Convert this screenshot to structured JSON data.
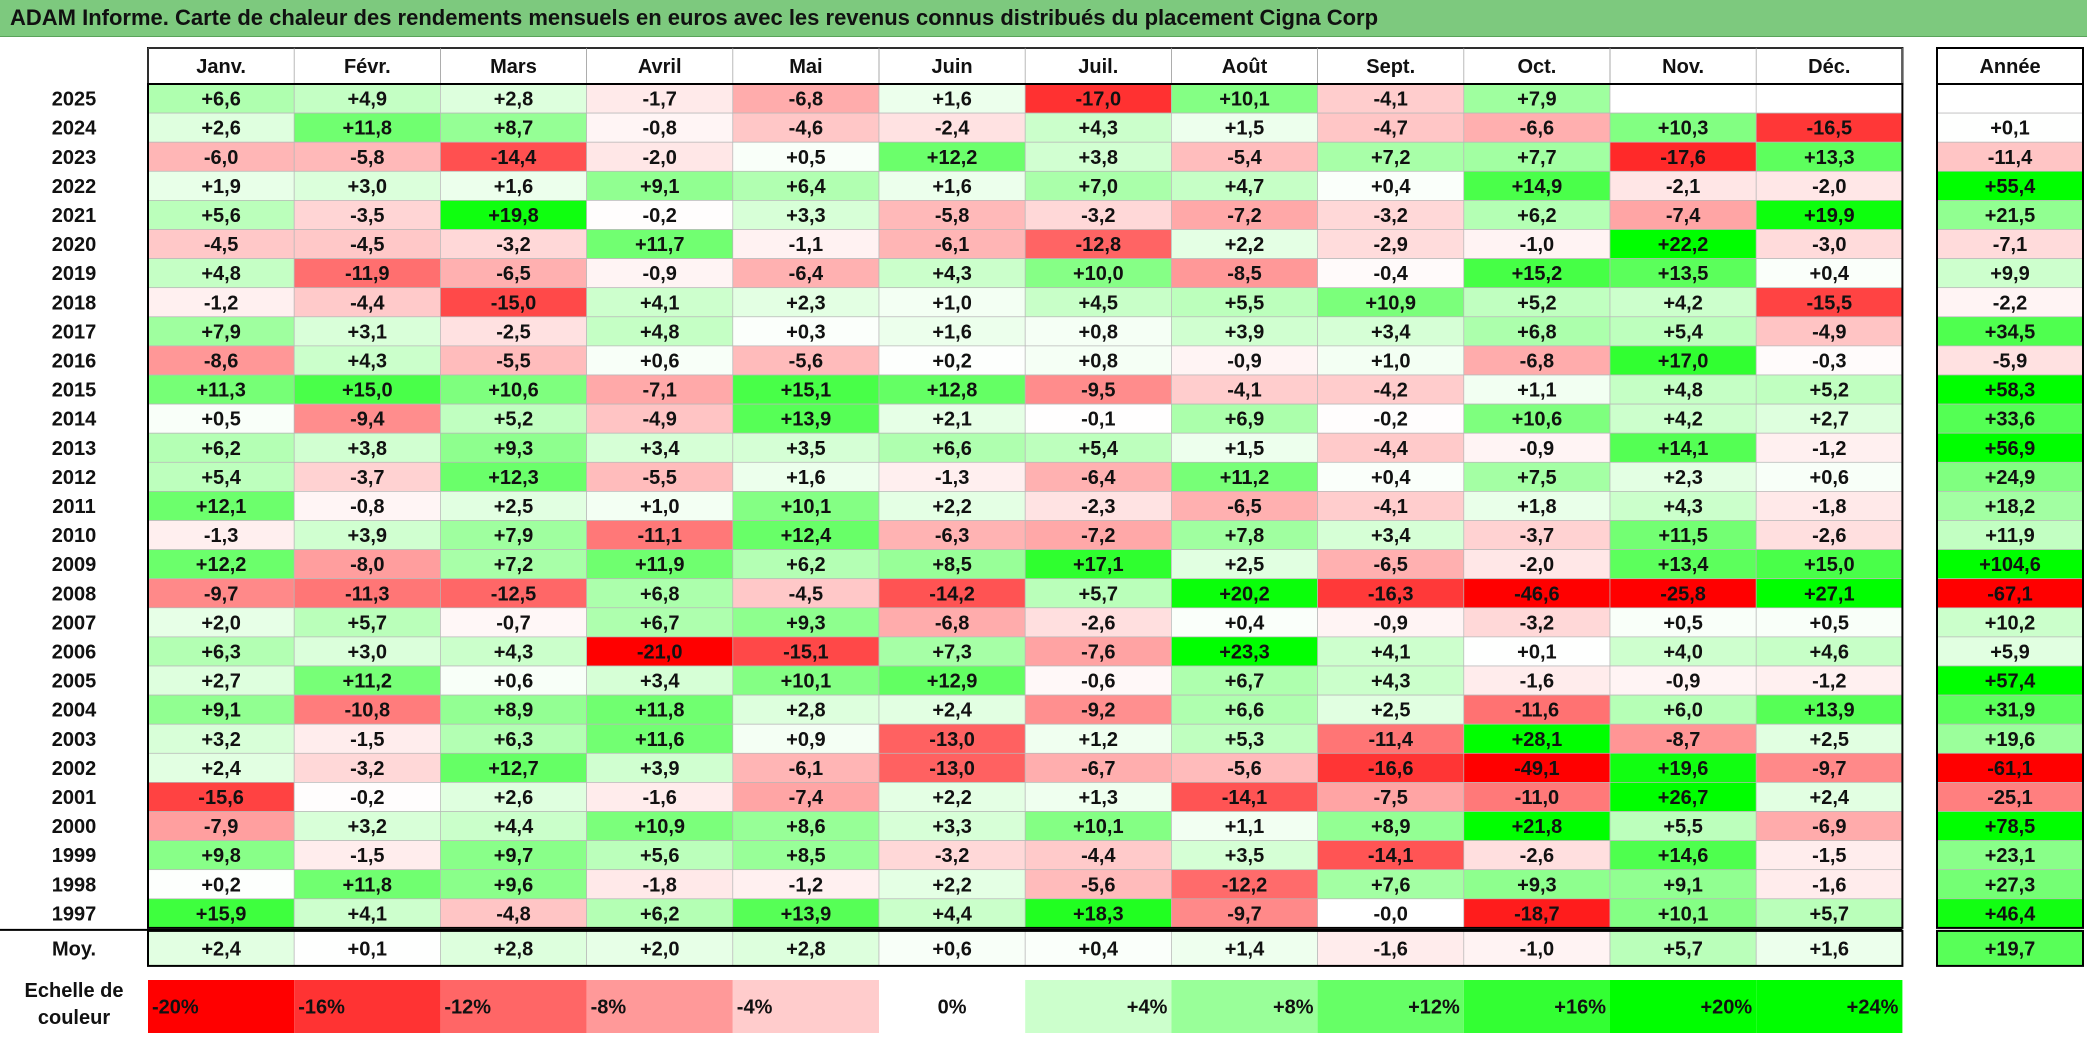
{
  "title": "ADAM Informe. Carte de chaleur des rendements mensuels en euros avec les revenus connus distribués du placement Cigna Corp",
  "colors": {
    "title_bg": "#7dc97e",
    "negative_max": "#ff0000",
    "neutral": "#ffffff",
    "positive_max": "#00ff00"
  },
  "chart_data": {
    "type": "heatmap",
    "columns": [
      "Janv.",
      "Févr.",
      "Mars",
      "Avril",
      "Mai",
      "Juin",
      "Juil.",
      "Août",
      "Sept.",
      "Oct.",
      "Nov.",
      "Déc."
    ],
    "annual_header": "Année",
    "rows": [
      {
        "year": "2025",
        "values": [
          "+6,6",
          "+4,9",
          "+2,8",
          "-1,7",
          "-6,8",
          "+1,6",
          "-17,0",
          "+10,1",
          "-4,1",
          "+7,9",
          "",
          ""
        ],
        "annual": ""
      },
      {
        "year": "2024",
        "values": [
          "+2,6",
          "+11,8",
          "+8,7",
          "-0,8",
          "-4,6",
          "-2,4",
          "+4,3",
          "+1,5",
          "-4,7",
          "-6,6",
          "+10,3",
          "-16,5"
        ],
        "annual": "+0,1"
      },
      {
        "year": "2023",
        "values": [
          "-6,0",
          "-5,8",
          "-14,4",
          "-2,0",
          "+0,5",
          "+12,2",
          "+3,8",
          "-5,4",
          "+7,2",
          "+7,7",
          "-17,6",
          "+13,3"
        ],
        "annual": "-11,4"
      },
      {
        "year": "2022",
        "values": [
          "+1,9",
          "+3,0",
          "+1,6",
          "+9,1",
          "+6,4",
          "+1,6",
          "+7,0",
          "+4,7",
          "+0,4",
          "+14,9",
          "-2,1",
          "-2,0"
        ],
        "annual": "+55,4"
      },
      {
        "year": "2021",
        "values": [
          "+5,6",
          "-3,5",
          "+19,8",
          "-0,2",
          "+3,3",
          "-5,8",
          "-3,2",
          "-7,2",
          "-3,2",
          "+6,2",
          "-7,4",
          "+19,9"
        ],
        "annual": "+21,5"
      },
      {
        "year": "2020",
        "values": [
          "-4,5",
          "-4,5",
          "-3,2",
          "+11,7",
          "-1,1",
          "-6,1",
          "-12,8",
          "+2,2",
          "-2,9",
          "-1,0",
          "+22,2",
          "-3,0"
        ],
        "annual": "-7,1"
      },
      {
        "year": "2019",
        "values": [
          "+4,8",
          "-11,9",
          "-6,5",
          "-0,9",
          "-6,4",
          "+4,3",
          "+10,0",
          "-8,5",
          "-0,4",
          "+15,2",
          "+13,5",
          "+0,4"
        ],
        "annual": "+9,9"
      },
      {
        "year": "2018",
        "values": [
          "-1,2",
          "-4,4",
          "-15,0",
          "+4,1",
          "+2,3",
          "+1,0",
          "+4,5",
          "+5,5",
          "+10,9",
          "+5,2",
          "+4,2",
          "-15,5"
        ],
        "annual": "-2,2"
      },
      {
        "year": "2017",
        "values": [
          "+7,9",
          "+3,1",
          "-2,5",
          "+4,8",
          "+0,3",
          "+1,6",
          "+0,8",
          "+3,9",
          "+3,4",
          "+6,8",
          "+5,4",
          "-4,9"
        ],
        "annual": "+34,5"
      },
      {
        "year": "2016",
        "values": [
          "-8,6",
          "+4,3",
          "-5,5",
          "+0,6",
          "-5,6",
          "+0,2",
          "+0,8",
          "-0,9",
          "+1,0",
          "-6,8",
          "+17,0",
          "-0,3"
        ],
        "annual": "-5,9"
      },
      {
        "year": "2015",
        "values": [
          "+11,3",
          "+15,0",
          "+10,6",
          "-7,1",
          "+15,1",
          "+12,8",
          "-9,5",
          "-4,1",
          "-4,2",
          "+1,1",
          "+4,8",
          "+5,2"
        ],
        "annual": "+58,3"
      },
      {
        "year": "2014",
        "values": [
          "+0,5",
          "-9,4",
          "+5,2",
          "-4,9",
          "+13,9",
          "+2,1",
          "-0,1",
          "+6,9",
          "-0,2",
          "+10,6",
          "+4,2",
          "+2,7"
        ],
        "annual": "+33,6"
      },
      {
        "year": "2013",
        "values": [
          "+6,2",
          "+3,8",
          "+9,3",
          "+3,4",
          "+3,5",
          "+6,6",
          "+5,4",
          "+1,5",
          "-4,4",
          "-0,9",
          "+14,1",
          "-1,2"
        ],
        "annual": "+56,9"
      },
      {
        "year": "2012",
        "values": [
          "+5,4",
          "-3,7",
          "+12,3",
          "-5,5",
          "+1,6",
          "-1,3",
          "-6,4",
          "+11,2",
          "+0,4",
          "+7,5",
          "+2,3",
          "+0,6"
        ],
        "annual": "+24,9"
      },
      {
        "year": "2011",
        "values": [
          "+12,1",
          "-0,8",
          "+2,5",
          "+1,0",
          "+10,1",
          "+2,2",
          "-2,3",
          "-6,5",
          "-4,1",
          "+1,8",
          "+4,3",
          "-1,8"
        ],
        "annual": "+18,2"
      },
      {
        "year": "2010",
        "values": [
          "-1,3",
          "+3,9",
          "+7,9",
          "-11,1",
          "+12,4",
          "-6,3",
          "-7,2",
          "+7,8",
          "+3,4",
          "-3,7",
          "+11,5",
          "-2,6"
        ],
        "annual": "+11,9"
      },
      {
        "year": "2009",
        "values": [
          "+12,2",
          "-8,0",
          "+7,2",
          "+11,9",
          "+6,2",
          "+8,5",
          "+17,1",
          "+2,5",
          "-6,5",
          "-2,0",
          "+13,4",
          "+15,0"
        ],
        "annual": "+104,6"
      },
      {
        "year": "2008",
        "values": [
          "-9,7",
          "-11,3",
          "-12,5",
          "+6,8",
          "-4,5",
          "-14,2",
          "+5,7",
          "+20,2",
          "-16,3",
          "-46,6",
          "-25,8",
          "+27,1"
        ],
        "annual": "-67,1"
      },
      {
        "year": "2007",
        "values": [
          "+2,0",
          "+5,7",
          "-0,7",
          "+6,7",
          "+9,3",
          "-6,8",
          "-2,6",
          "+0,4",
          "-0,9",
          "-3,2",
          "+0,5",
          "+0,5"
        ],
        "annual": "+10,2"
      },
      {
        "year": "2006",
        "values": [
          "+6,3",
          "+3,0",
          "+4,3",
          "-21,0",
          "-15,1",
          "+7,3",
          "-7,6",
          "+23,3",
          "+4,1",
          "+0,1",
          "+4,0",
          "+4,6"
        ],
        "annual": "+5,9"
      },
      {
        "year": "2005",
        "values": [
          "+2,7",
          "+11,2",
          "+0,6",
          "+3,4",
          "+10,1",
          "+12,9",
          "-0,6",
          "+6,7",
          "+4,3",
          "-1,6",
          "-0,9",
          "-1,2"
        ],
        "annual": "+57,4"
      },
      {
        "year": "2004",
        "values": [
          "+9,1",
          "-10,8",
          "+8,9",
          "+11,8",
          "+2,8",
          "+2,4",
          "-9,2",
          "+6,6",
          "+2,5",
          "-11,6",
          "+6,0",
          "+13,9"
        ],
        "annual": "+31,9"
      },
      {
        "year": "2003",
        "values": [
          "+3,2",
          "-1,5",
          "+6,3",
          "+11,6",
          "+0,9",
          "-13,0",
          "+1,2",
          "+5,3",
          "-11,4",
          "+28,1",
          "-8,7",
          "+2,5"
        ],
        "annual": "+19,6"
      },
      {
        "year": "2002",
        "values": [
          "+2,4",
          "-3,2",
          "+12,7",
          "+3,9",
          "-6,1",
          "-13,0",
          "-6,7",
          "-5,6",
          "-16,6",
          "-49,1",
          "+19,6",
          "-9,7"
        ],
        "annual": "-61,1"
      },
      {
        "year": "2001",
        "values": [
          "-15,6",
          "-0,2",
          "+2,6",
          "-1,6",
          "-7,4",
          "+2,2",
          "+1,3",
          "-14,1",
          "-7,5",
          "-11,0",
          "+26,7",
          "+2,4"
        ],
        "annual": "-25,1"
      },
      {
        "year": "2000",
        "values": [
          "-7,9",
          "+3,2",
          "+4,4",
          "+10,9",
          "+8,6",
          "+3,3",
          "+10,1",
          "+1,1",
          "+8,9",
          "+21,8",
          "+5,5",
          "-6,9"
        ],
        "annual": "+78,5"
      },
      {
        "year": "1999",
        "values": [
          "+9,8",
          "-1,5",
          "+9,7",
          "+5,6",
          "+8,5",
          "-3,2",
          "-4,4",
          "+3,5",
          "-14,1",
          "-2,6",
          "+14,6",
          "-1,5"
        ],
        "annual": "+23,1"
      },
      {
        "year": "1998",
        "values": [
          "+0,2",
          "+11,8",
          "+9,6",
          "-1,8",
          "-1,2",
          "+2,2",
          "-5,6",
          "-12,2",
          "+7,6",
          "+9,3",
          "+9,1",
          "-1,6"
        ],
        "annual": "+27,3"
      },
      {
        "year": "1997",
        "values": [
          "+15,9",
          "+4,1",
          "-4,8",
          "+6,2",
          "+13,9",
          "+4,4",
          "+18,3",
          "-9,7",
          "-0,0",
          "-18,7",
          "+10,1",
          "+5,7"
        ],
        "annual": "+46,4"
      }
    ],
    "average": {
      "label": "Moy.",
      "values": [
        "+2,4",
        "+0,1",
        "+2,8",
        "+2,0",
        "+2,8",
        "+0,6",
        "+0,4",
        "+1,4",
        "-1,6",
        "-1,0",
        "+5,7",
        "+1,6"
      ],
      "annual": "+19,7"
    },
    "color_scale": {
      "title_lines": [
        "Echelle de",
        "couleur"
      ],
      "labels": [
        "-20%",
        "-16%",
        "-12%",
        "-8%",
        "-4%",
        "0%",
        "+4%",
        "+8%",
        "+12%",
        "+16%",
        "+20%",
        "+24%"
      ],
      "values": [
        -20,
        -16,
        -12,
        -8,
        -4,
        0,
        4,
        8,
        12,
        16,
        20,
        24
      ]
    }
  }
}
